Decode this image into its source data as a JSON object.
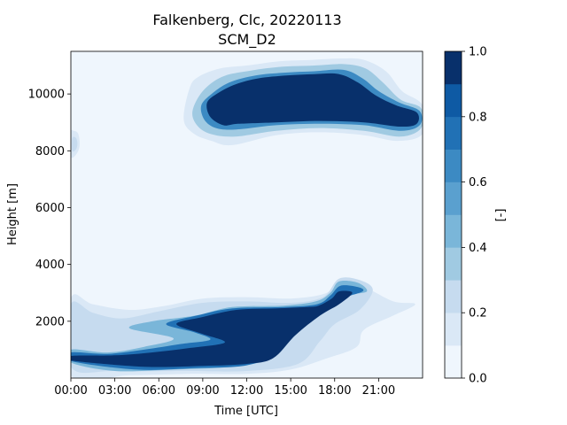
{
  "chart_data": {
    "type": "heatmap",
    "title": "Falkenberg, Clc, 20220113",
    "subtitle": "SCM_D2",
    "xlabel": "Time [UTC]",
    "ylabel": "Height [m]",
    "colorbar_label": "[-]",
    "xlim": [
      0,
      24
    ],
    "ylim": [
      0,
      11500
    ],
    "x_ticks": [
      {
        "value": 0,
        "label": "00:00"
      },
      {
        "value": 3,
        "label": "03:00"
      },
      {
        "value": 6,
        "label": "06:00"
      },
      {
        "value": 9,
        "label": "09:00"
      },
      {
        "value": 12,
        "label": "12:00"
      },
      {
        "value": 15,
        "label": "15:00"
      },
      {
        "value": 18,
        "label": "18:00"
      },
      {
        "value": 21,
        "label": "21:00"
      }
    ],
    "y_ticks": [
      {
        "value": 2000,
        "label": "2000"
      },
      {
        "value": 4000,
        "label": "4000"
      },
      {
        "value": 6000,
        "label": "6000"
      },
      {
        "value": 8000,
        "label": "8000"
      },
      {
        "value": 10000,
        "label": "10000"
      }
    ],
    "colorbar": {
      "min": 0.0,
      "max": 1.0,
      "levels": [
        0.0,
        0.1,
        0.2,
        0.3,
        0.4,
        0.5,
        0.6,
        0.7,
        0.8,
        0.9,
        1.0
      ],
      "colors": [
        "#eff6fd",
        "#dae8f6",
        "#c6dbef",
        "#a0cae2",
        "#7ab6d9",
        "#5aa0cf",
        "#3c8ac3",
        "#2171b5",
        "#0e5aa4",
        "#08306b"
      ],
      "ticks": [
        {
          "value": 0.0,
          "label": "0.0"
        },
        {
          "value": 0.2,
          "label": "0.2"
        },
        {
          "value": 0.4,
          "label": "0.4"
        },
        {
          "value": 0.6,
          "label": "0.6"
        },
        {
          "value": 0.8,
          "label": "0.8"
        },
        {
          "value": 1.0,
          "label": "1.0"
        }
      ]
    },
    "cloud_regions": [
      {
        "name": "upper cloud layer",
        "contours": [
          {
            "level": 0.1,
            "points": [
              [
                7.7,
                9100
              ],
              [
                8.1,
                10200
              ],
              [
                8.7,
                10600
              ],
              [
                10.2,
                10900
              ],
              [
                12.0,
                11000
              ],
              [
                14.2,
                11150
              ],
              [
                16.5,
                11200
              ],
              [
                18.5,
                11250
              ],
              [
                20.0,
                11200
              ],
              [
                21.5,
                10800
              ],
              [
                22.6,
                10100
              ],
              [
                24.0,
                9600
              ],
              [
                24.0,
                8600
              ],
              [
                22.3,
                8350
              ],
              [
                20.0,
                8550
              ],
              [
                17.0,
                8650
              ],
              [
                14.0,
                8550
              ],
              [
                11.0,
                8200
              ],
              [
                9.6,
                8350
              ],
              [
                8.4,
                8600
              ]
            ]
          },
          {
            "level": 0.3,
            "points": [
              [
                8.3,
                9400
              ],
              [
                9.0,
                10100
              ],
              [
                10.3,
                10600
              ],
              [
                12.0,
                10800
              ],
              [
                14.2,
                10950
              ],
              [
                16.6,
                11000
              ],
              [
                18.6,
                11050
              ],
              [
                20.1,
                10900
              ],
              [
                21.3,
                10400
              ],
              [
                22.5,
                9800
              ],
              [
                23.9,
                9500
              ],
              [
                23.9,
                8800
              ],
              [
                22.5,
                8500
              ],
              [
                20.0,
                8700
              ],
              [
                17.0,
                8800
              ],
              [
                14.0,
                8700
              ],
              [
                11.2,
                8500
              ],
              [
                9.5,
                8600
              ],
              [
                8.6,
                8900
              ]
            ]
          },
          {
            "level": 0.6,
            "points": [
              [
                8.9,
                9600
              ],
              [
                9.6,
                10000
              ],
              [
                10.8,
                10400
              ],
              [
                12.6,
                10650
              ],
              [
                14.5,
                10750
              ],
              [
                16.6,
                10800
              ],
              [
                18.6,
                10850
              ],
              [
                19.9,
                10550
              ],
              [
                21.0,
                10100
              ],
              [
                22.4,
                9700
              ],
              [
                23.8,
                9400
              ],
              [
                23.8,
                8900
              ],
              [
                22.5,
                8700
              ],
              [
                20.0,
                8900
              ],
              [
                17.0,
                8950
              ],
              [
                14.0,
                8900
              ],
              [
                11.3,
                8750
              ],
              [
                9.9,
                8800
              ],
              [
                9.1,
                9100
              ]
            ]
          },
          {
            "level": 0.9,
            "points": [
              [
                9.3,
                9700
              ],
              [
                10.1,
                10050
              ],
              [
                11.3,
                10350
              ],
              [
                12.8,
                10550
              ],
              [
                14.7,
                10650
              ],
              [
                16.6,
                10700
              ],
              [
                18.3,
                10700
              ],
              [
                19.6,
                10400
              ],
              [
                20.8,
                9950
              ],
              [
                22.2,
                9600
              ],
              [
                23.6,
                9350
              ],
              [
                23.6,
                8950
              ],
              [
                22.5,
                8850
              ],
              [
                20.0,
                9000
              ],
              [
                17.0,
                9050
              ],
              [
                14.0,
                9000
              ],
              [
                11.4,
                8950
              ],
              [
                10.4,
                8900
              ],
              [
                9.5,
                9200
              ]
            ]
          }
        ]
      },
      {
        "name": "upper-left patch",
        "contours": [
          {
            "level": 0.1,
            "points": [
              [
                0.0,
                7800
              ],
              [
                0.4,
                7900
              ],
              [
                0.6,
                8200
              ],
              [
                0.5,
                8600
              ],
              [
                0.2,
                8700
              ],
              [
                0.0,
                8650
              ]
            ]
          },
          {
            "level": 0.2,
            "points": [
              [
                0.1,
                8000
              ],
              [
                0.35,
                8050
              ],
              [
                0.45,
                8250
              ],
              [
                0.35,
                8450
              ],
              [
                0.1,
                8450
              ]
            ]
          }
        ]
      },
      {
        "name": "lower cloud layer",
        "contours": [
          {
            "level": 0.1,
            "points": [
              [
                0.0,
                100
              ],
              [
                0.0,
                2800
              ],
              [
                1.5,
                2600
              ],
              [
                4.0,
                2400
              ],
              [
                6.5,
                2550
              ],
              [
                9.0,
                2800
              ],
              [
                12.0,
                2850
              ],
              [
                15.0,
                2800
              ],
              [
                17.2,
                2950
              ],
              [
                18.5,
                3300
              ],
              [
                20.0,
                3200
              ],
              [
                22.0,
                2700
              ],
              [
                23.5,
                2600
              ],
              [
                22.0,
                2200
              ],
              [
                20.0,
                1700
              ],
              [
                19.5,
                1100
              ],
              [
                17.5,
                700
              ],
              [
                15.0,
                300
              ],
              [
                12.0,
                150
              ],
              [
                8.0,
                150
              ],
              [
                4.0,
                100
              ]
            ]
          },
          {
            "level": 0.2,
            "points": [
              [
                0.0,
                400
              ],
              [
                0.0,
                2600
              ],
              [
                1.5,
                2300
              ],
              [
                3.5,
                2100
              ],
              [
                6.0,
                2350
              ],
              [
                9.0,
                2650
              ],
              [
                12.0,
                2700
              ],
              [
                15.0,
                2650
              ],
              [
                17.2,
                2850
              ],
              [
                18.3,
                3500
              ],
              [
                19.7,
                3450
              ],
              [
                20.6,
                3100
              ],
              [
                19.7,
                2400
              ],
              [
                18.0,
                1900
              ],
              [
                17.0,
                1300
              ],
              [
                15.5,
                500
              ],
              [
                12.0,
                250
              ],
              [
                8.0,
                250
              ],
              [
                3.0,
                250
              ]
            ]
          },
          {
            "level": 0.4,
            "points": [
              [
                0.0,
                550
              ],
              [
                0.0,
                1000
              ],
              [
                2.5,
                900
              ],
              [
                5.0,
                1100
              ],
              [
                7.0,
                1400
              ],
              [
                4.0,
                1750
              ],
              [
                5.6,
                2000
              ],
              [
                8.5,
                2200
              ],
              [
                11.0,
                2500
              ],
              [
                14.5,
                2550
              ],
              [
                16.7,
                2700
              ],
              [
                17.7,
                3000
              ],
              [
                18.3,
                3400
              ],
              [
                19.6,
                3350
              ],
              [
                20.2,
                3050
              ],
              [
                19.0,
                2900
              ],
              [
                17.3,
                2400
              ],
              [
                15.2,
                1700
              ],
              [
                13.5,
                700
              ],
              [
                11.0,
                400
              ],
              [
                7.0,
                300
              ],
              [
                3.0,
                250
              ]
            ]
          },
          {
            "level": 0.7,
            "points": [
              [
                0.0,
                600
              ],
              [
                0.0,
                900
              ],
              [
                2.5,
                850
              ],
              [
                5.0,
                1000
              ],
              [
                7.5,
                1200
              ],
              [
                9.5,
                1350
              ],
              [
                8.5,
                1600
              ],
              [
                6.5,
                1900
              ],
              [
                8.6,
                2200
              ],
              [
                11.0,
                2450
              ],
              [
                14.5,
                2500
              ],
              [
                16.8,
                2600
              ],
              [
                17.7,
                2900
              ],
              [
                18.4,
                3250
              ],
              [
                19.6,
                3200
              ],
              [
                19.9,
                3050
              ],
              [
                18.5,
                2800
              ],
              [
                17.2,
                2400
              ],
              [
                15.4,
                1800
              ],
              [
                14.0,
                900
              ],
              [
                12.0,
                450
              ],
              [
                8.5,
                350
              ],
              [
                4.5,
                300
              ]
            ]
          },
          {
            "level": 0.9,
            "points": [
              [
                0.0,
                620
              ],
              [
                0.0,
                780
              ],
              [
                3.0,
                800
              ],
              [
                5.5,
                900
              ],
              [
                8.0,
                1050
              ],
              [
                10.5,
                1250
              ],
              [
                9.0,
                1550
              ],
              [
                7.2,
                1900
              ],
              [
                9.0,
                2150
              ],
              [
                11.3,
                2400
              ],
              [
                14.0,
                2450
              ],
              [
                16.1,
                2500
              ],
              [
                16.9,
                2550
              ],
              [
                17.8,
                2800
              ],
              [
                18.3,
                3050
              ],
              [
                19.2,
                3000
              ],
              [
                18.3,
                2600
              ],
              [
                17.0,
                2200
              ],
              [
                15.3,
                1500
              ],
              [
                13.8,
                700
              ],
              [
                12.0,
                500
              ],
              [
                9.0,
                430
              ],
              [
                5.0,
                400
              ]
            ]
          }
        ]
      }
    ]
  }
}
